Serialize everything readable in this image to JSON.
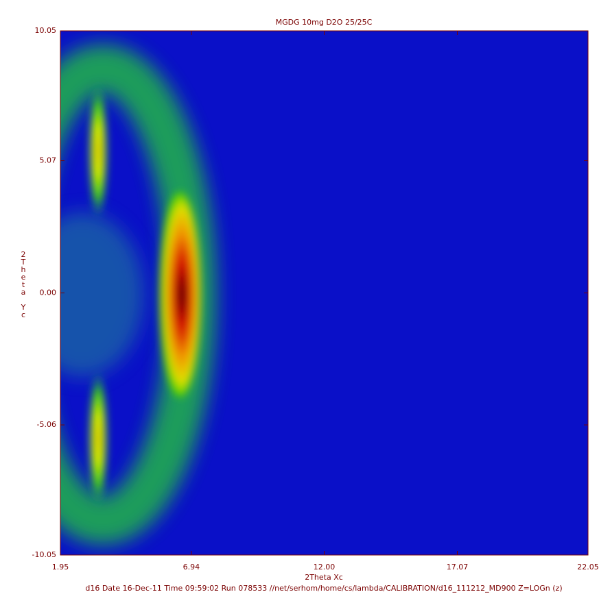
{
  "chart_data": {
    "type": "heatmap",
    "title": "MGDG 10mg D2O 25/25C",
    "xlabel": "2Theta Xc",
    "ylabel": "2Theta Yc",
    "footer": "d16 Date 16-Dec-11 Time 09:59:02 Run 078533 //net/serhom/home/cs/lambda/CALIBRATION/d16_111212_MD900 Z=LOGn (z)",
    "xlim": [
      1.95,
      22.05
    ],
    "xticks": [
      1.95,
      6.94,
      {
        "value": 12,
        "label": "12.00"
      },
      17.07,
      22.05
    ],
    "ylim": [
      -10.05,
      10.05
    ],
    "yticks": [
      -10.05,
      -5.06,
      {
        "value": 0,
        "label": "0.00"
      },
      5.07,
      10.05
    ],
    "grid": false
  }
}
